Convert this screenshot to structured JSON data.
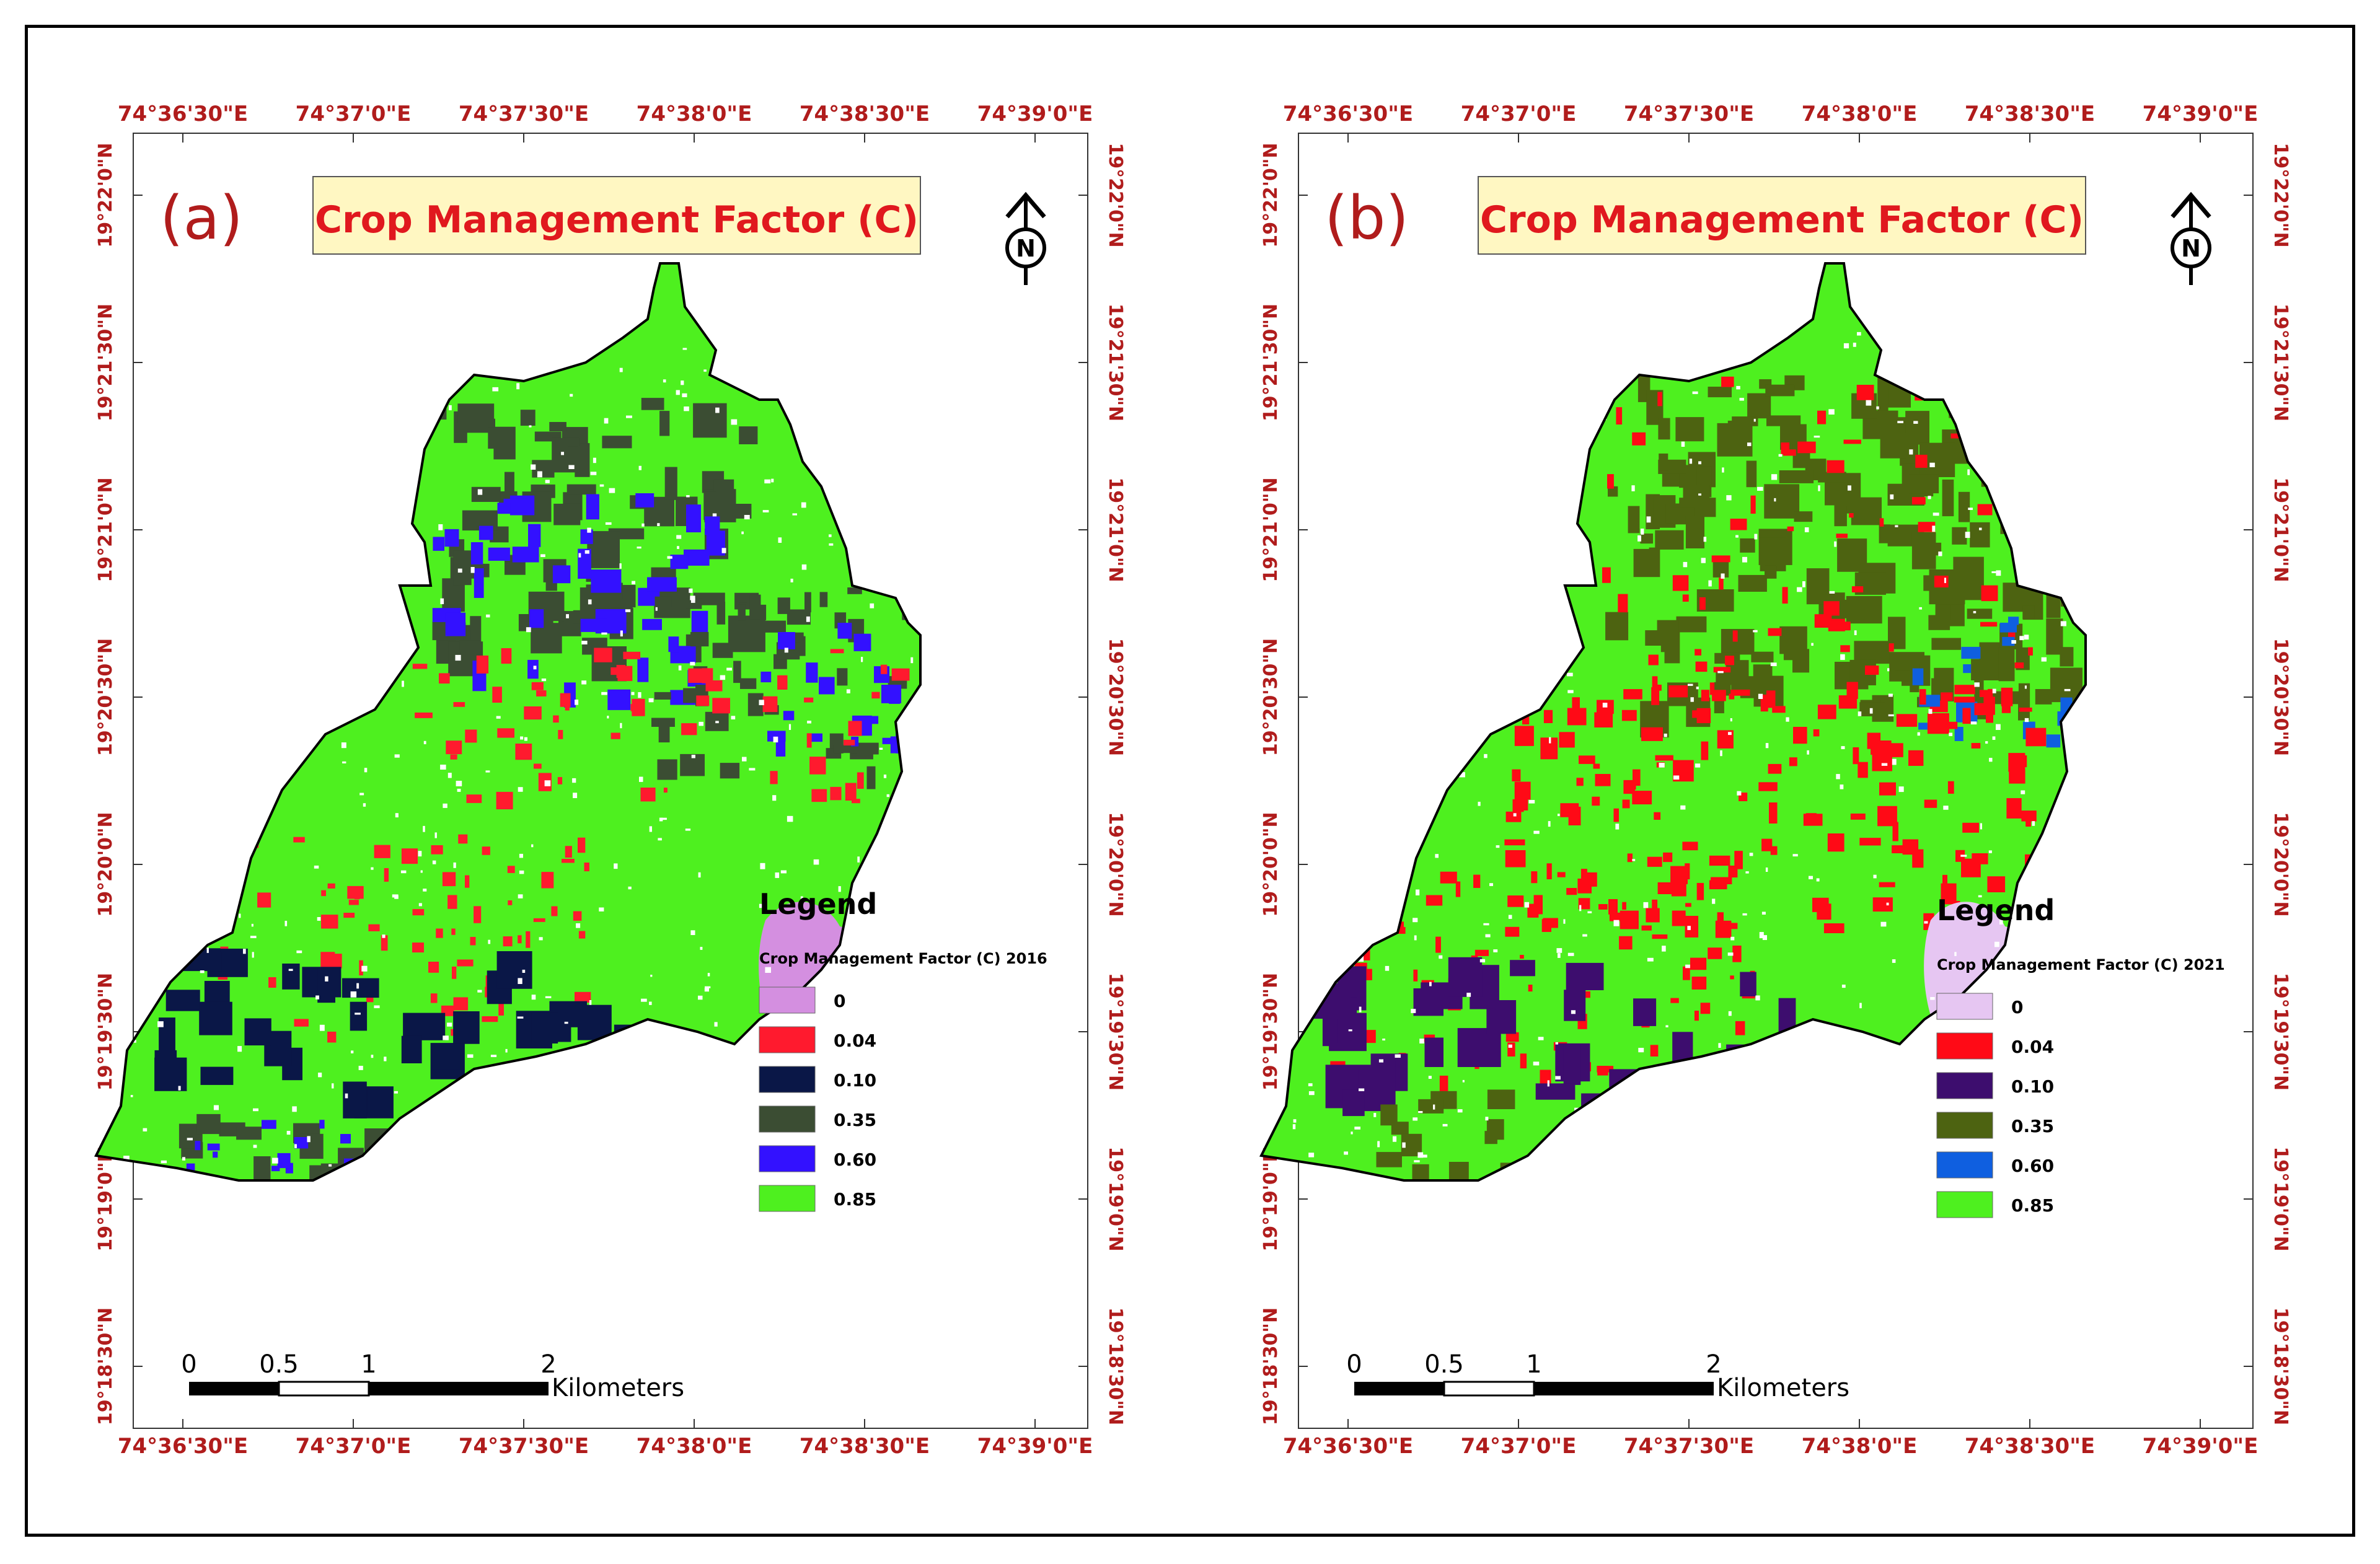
{
  "maps": [
    {
      "id": "a",
      "panel_letter": "(a)",
      "title": "Crop Management Factor (C)",
      "legend_title": "Legend",
      "legend_subtitle": "Crop Management Factor (C) 2016",
      "legend_items": [
        {
          "label": "0",
          "color": "#d48fe0"
        },
        {
          "label": "0.04",
          "color": "#ff1a2e"
        },
        {
          "label": "0.10",
          "color": "#0a1747"
        },
        {
          "label": "0.35",
          "color": "#3b4d33"
        },
        {
          "label": "0.60",
          "color": "#3311ff"
        },
        {
          "label": "0.85",
          "color": "#4ef01f"
        }
      ]
    },
    {
      "id": "b",
      "panel_letter": "(b)",
      "title": "Crop Management Factor (C)",
      "legend_title": "Legend",
      "legend_subtitle": "Crop Management Factor (C) 2021",
      "legend_items": [
        {
          "label": "0",
          "color": "#e6c6f2"
        },
        {
          "label": "0.04",
          "color": "#ff0a16"
        },
        {
          "label": "0.10",
          "color": "#3d0d6e"
        },
        {
          "label": "0.35",
          "color": "#4d6311"
        },
        {
          "label": "0.60",
          "color": "#0f5fe0"
        },
        {
          "label": "0.85",
          "color": "#4ef01f"
        }
      ]
    }
  ],
  "lon_ticks": [
    "74°36'30\"E",
    "74°37'0\"E",
    "74°37'30\"E",
    "74°38'0\"E",
    "74°38'30\"E",
    "74°39'0\"E"
  ],
  "lat_ticks": [
    "19°22'0\"N",
    "19°21'30\"N",
    "19°21'0\"N",
    "19°20'30\"N",
    "19°20'0\"N",
    "19°19'30\"N",
    "19°19'0\"N",
    "19°18'30\"N"
  ],
  "scale_bar": {
    "labels": [
      "0",
      "0.5",
      "1",
      "2"
    ],
    "unit": "Kilometers"
  },
  "north_arrow": {
    "letter": "N"
  },
  "colors": {
    "tick_label": "#b01c1c",
    "title_text": "#e0181e",
    "title_bg": "#fff7c2",
    "panel_letter": "#b01c1c"
  }
}
